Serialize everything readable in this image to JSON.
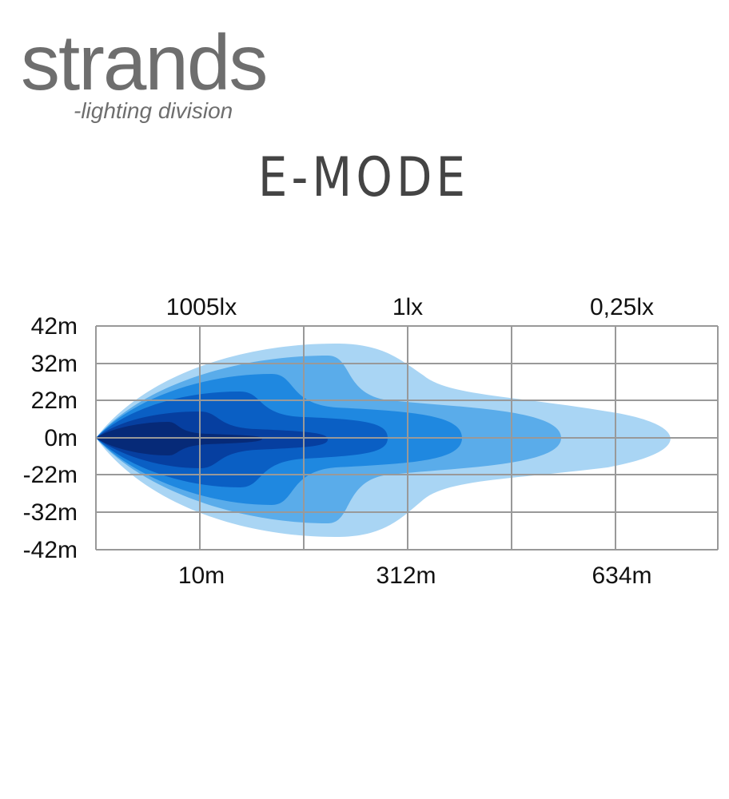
{
  "logo": {
    "name": "strands",
    "tagline": "-lighting division"
  },
  "title": "E-MODE",
  "diagram": {
    "lux_labels": [
      "1005lx",
      "1lx",
      "0,25lx"
    ],
    "width_labels": [
      "42m",
      "32m",
      "22m",
      "0m",
      "-22m",
      "-32m",
      "-42m"
    ],
    "distance_labels": [
      "10m",
      "312m",
      "634m"
    ]
  }
}
